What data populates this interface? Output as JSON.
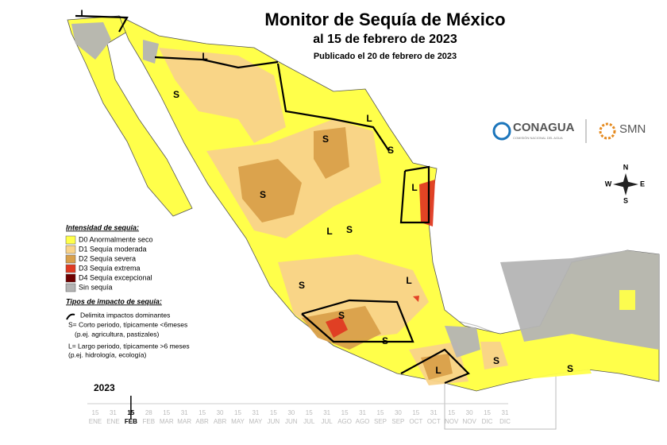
{
  "header": {
    "title": "Monitor de Sequía de México",
    "subtitle": "al 15 de febrero de 2023",
    "published": "Publicado el 20 de febrero de 2023"
  },
  "logos": {
    "conagua": "CONAGUA",
    "conagua_sub": "COMISIÓN NACIONAL DEL AGUA",
    "smn": "SMN"
  },
  "compass": {
    "n": "N",
    "s": "S",
    "e": "E",
    "w": "W"
  },
  "legend": {
    "title": "Intensidad de sequía:",
    "items": [
      {
        "label": "D0 Anormalmente seco",
        "color": "#ffff4a"
      },
      {
        "label": "D1 Sequía moderada",
        "color": "#f9d38a"
      },
      {
        "label": "D2 Sequía severa",
        "color": "#d9a04a"
      },
      {
        "label": "D3 Sequía extrema",
        "color": "#e03a22"
      },
      {
        "label": "D4 Sequía excepcional",
        "color": "#6e0000"
      },
      {
        "label": "Sin sequía",
        "color": "#b4b4b4"
      }
    ],
    "impact_title": "Tipos de impacto de sequía:",
    "impact_items": [
      "Delimita impactos dominantes",
      "S= Corto periodo, típicamente <6meses",
      "(p.ej. agricultura, pastizales)",
      "L= Largo periodo, típicamente >6 meses",
      "(p.ej. hidrología, ecología)"
    ]
  },
  "map": {
    "labels": [
      "L",
      "L",
      "S",
      "L",
      "S",
      "S",
      "L",
      "S",
      "S",
      "L",
      "L",
      "S",
      "S",
      "S",
      "S",
      "L",
      "S"
    ]
  },
  "timeline": {
    "year": "2023",
    "days": [
      "15",
      "31",
      "15",
      "28",
      "15",
      "31",
      "15",
      "30",
      "15",
      "31",
      "15",
      "30",
      "15",
      "31",
      "15",
      "31",
      "15",
      "30",
      "15",
      "31",
      "15",
      "30",
      "15",
      "31"
    ],
    "months": [
      "ENE",
      "ENE",
      "FEB",
      "FEB",
      "MAR",
      "MAR",
      "ABR",
      "ABR",
      "MAY",
      "MAY",
      "JUN",
      "JUN",
      "JUL",
      "JUL",
      "AGO",
      "AGO",
      "SEP",
      "SEP",
      "OCT",
      "OCT",
      "NOV",
      "NOV",
      "DIC",
      "DIC"
    ]
  }
}
